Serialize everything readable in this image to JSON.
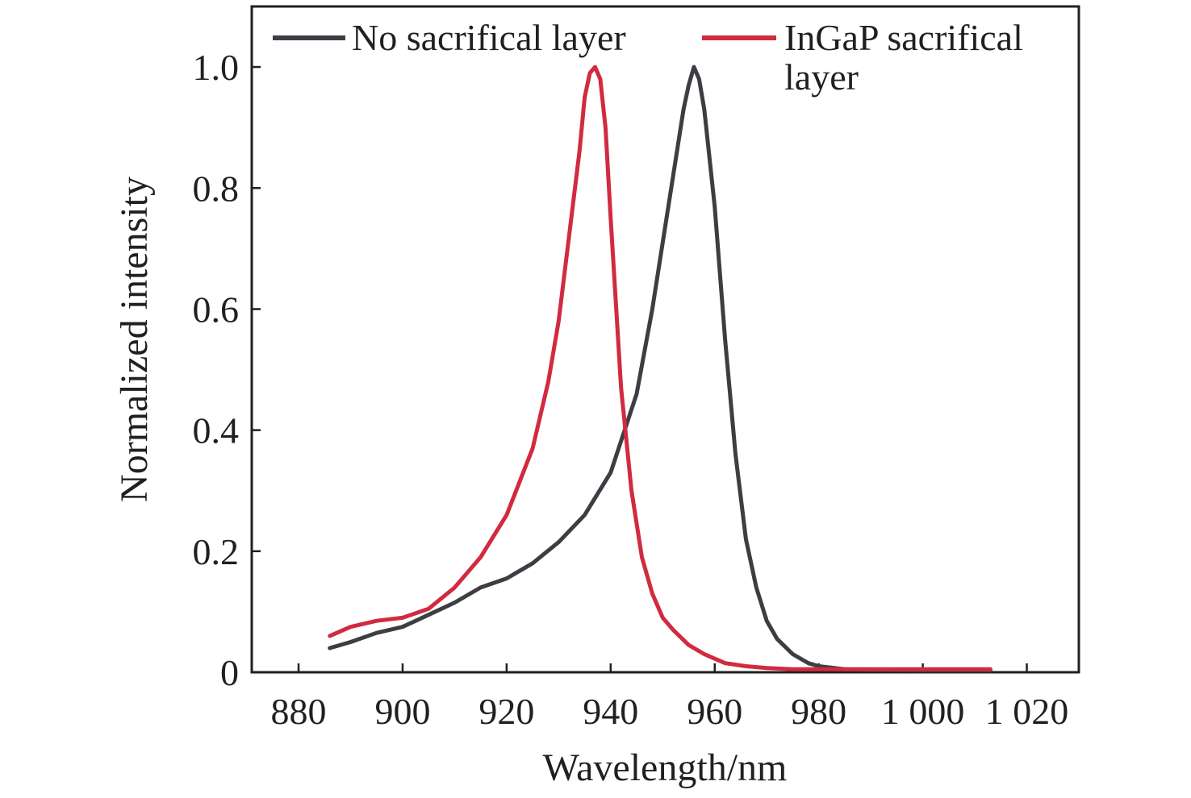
{
  "chart_data": {
    "type": "line",
    "xlabel": "Wavelength/nm",
    "ylabel": "Normalized intensity",
    "xlim": [
      871,
      1030
    ],
    "ylim": [
      0,
      1.1
    ],
    "xticks": [
      880,
      900,
      920,
      940,
      960,
      980,
      1000,
      1020
    ],
    "xtick_labels": [
      "880",
      "900",
      "920",
      "940",
      "960",
      "980",
      "1 000",
      "1 020"
    ],
    "yticks": [
      0,
      0.2,
      0.4,
      0.6,
      0.8,
      1.0
    ],
    "ytick_labels": [
      "0",
      "0.2",
      "0.4",
      "0.6",
      "0.8",
      "1.0"
    ],
    "grid": false,
    "legend_position": "top",
    "legend_lines": [
      [
        "No sacrifical layer"
      ],
      [
        "InGaP sacrifical",
        "layer"
      ]
    ],
    "series": [
      {
        "name": "No sacrifical layer",
        "color": "#3d3d44",
        "x": [
          886,
          890,
          895,
          900,
          905,
          910,
          915,
          920,
          925,
          930,
          935,
          940,
          945,
          948,
          950,
          952,
          954,
          955,
          956,
          957,
          958,
          960,
          962,
          964,
          966,
          968,
          970,
          972,
          975,
          978,
          980,
          985,
          990,
          1000,
          1013
        ],
        "y": [
          0.04,
          0.05,
          0.065,
          0.075,
          0.095,
          0.115,
          0.14,
          0.155,
          0.18,
          0.215,
          0.26,
          0.33,
          0.46,
          0.6,
          0.71,
          0.82,
          0.93,
          0.97,
          1.0,
          0.98,
          0.93,
          0.77,
          0.55,
          0.36,
          0.22,
          0.14,
          0.085,
          0.055,
          0.03,
          0.015,
          0.01,
          0.005,
          0.004,
          0.003,
          0.003
        ]
      },
      {
        "name": "InGaP sacrifical layer",
        "color": "#d02b40",
        "x": [
          886,
          890,
          895,
          900,
          905,
          910,
          915,
          920,
          925,
          928,
          930,
          932,
          934,
          935,
          936,
          937,
          938,
          939,
          940,
          942,
          944,
          946,
          948,
          950,
          952,
          955,
          958,
          962,
          966,
          970,
          975,
          980,
          990,
          1000,
          1013
        ],
        "y": [
          0.06,
          0.075,
          0.085,
          0.09,
          0.105,
          0.14,
          0.19,
          0.26,
          0.37,
          0.48,
          0.58,
          0.72,
          0.86,
          0.95,
          0.99,
          1.0,
          0.98,
          0.9,
          0.75,
          0.47,
          0.3,
          0.19,
          0.13,
          0.09,
          0.07,
          0.045,
          0.03,
          0.015,
          0.01,
          0.007,
          0.005,
          0.005,
          0.005,
          0.005,
          0.005
        ]
      }
    ]
  }
}
